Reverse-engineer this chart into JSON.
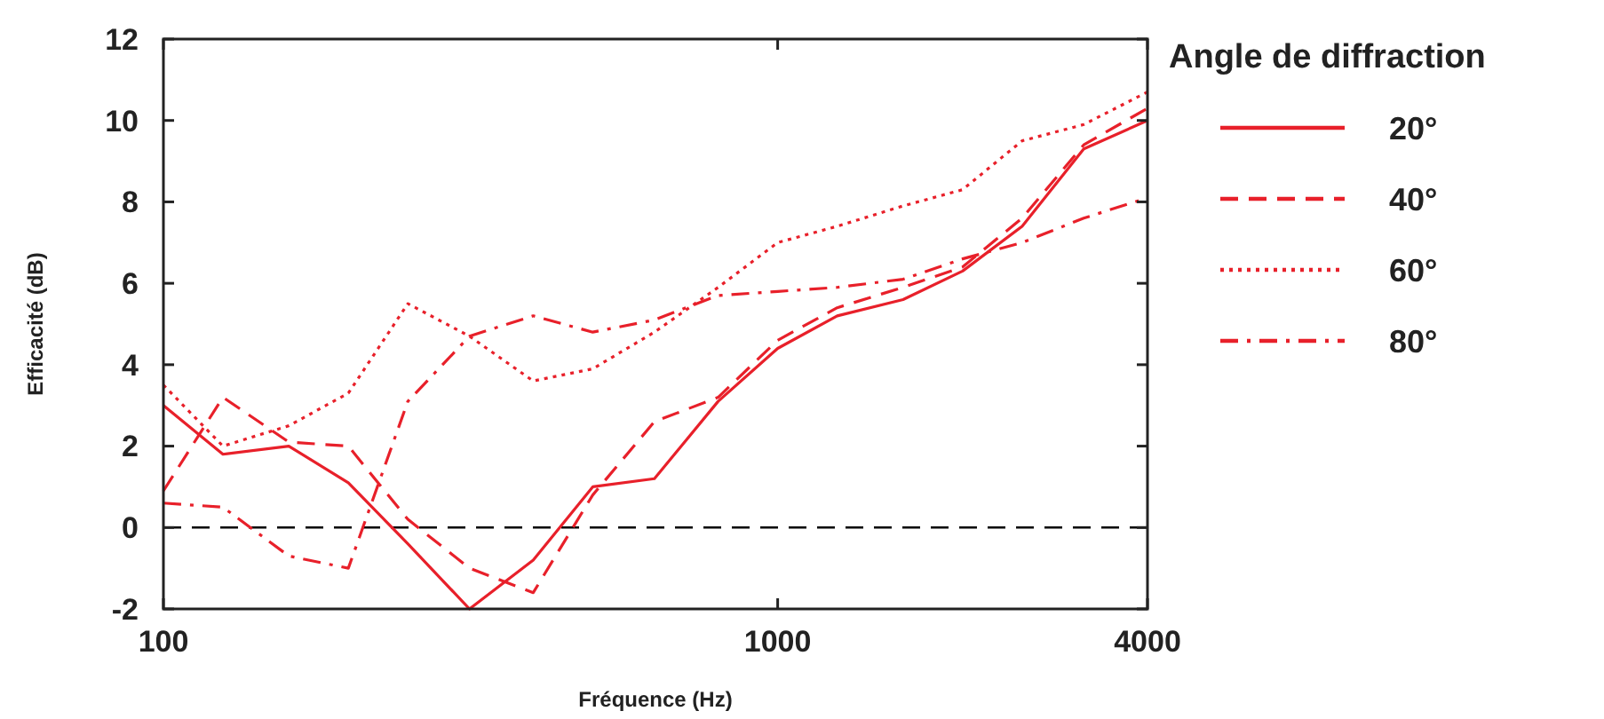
{
  "chart_data": {
    "type": "line",
    "xlabel": "Fréquence (Hz)",
    "ylabel": "Efficacité (dB)",
    "legend_title": "Angle de diffraction",
    "legend": "right",
    "log": "x",
    "grid": false,
    "x": [
      100,
      125,
      160,
      200,
      250,
      315,
      400,
      500,
      630,
      800,
      1000,
      1250,
      1600,
      2000,
      2500,
      3150,
      4000
    ],
    "xlim": [
      100,
      4000
    ],
    "xticks": [
      100,
      1000,
      4000
    ],
    "ylim": [
      -2,
      12
    ],
    "yticks": [
      -2,
      0,
      2,
      4,
      6,
      8,
      10,
      12
    ],
    "ref_lines": [
      {
        "axis": "y",
        "value": 0,
        "color": "#000000",
        "line_style": "dashed"
      }
    ],
    "series": [
      {
        "name": "20°",
        "color": "#e8202a",
        "line_style": "solid",
        "values": [
          3,
          1.8,
          2,
          1.1,
          -0.4,
          -2,
          -0.8,
          1,
          1.2,
          3.1,
          4.4,
          5.2,
          5.6,
          6.3,
          7.4,
          9.3,
          10
        ]
      },
      {
        "name": "40°",
        "color": "#e8202a",
        "line_style": "dashed",
        "values": [
          0.9,
          3.2,
          2.1,
          2,
          0.2,
          -1,
          -1.6,
          0.8,
          2.6,
          3.2,
          4.6,
          5.4,
          5.9,
          6.4,
          7.6,
          9.4,
          10.3
        ]
      },
      {
        "name": "60°",
        "color": "#e8202a",
        "line_style": "dotted",
        "values": [
          3.5,
          2,
          2.5,
          3.3,
          5.5,
          4.7,
          3.6,
          3.9,
          4.8,
          5.9,
          7,
          7.4,
          7.9,
          8.3,
          9.5,
          9.9,
          10.7
        ]
      },
      {
        "name": "80°",
        "color": "#e8202a",
        "line_style": "dashdot",
        "values": [
          0.6,
          0.5,
          -0.7,
          -1,
          3.1,
          4.7,
          5.2,
          4.8,
          5.1,
          5.7,
          5.8,
          5.9,
          6.1,
          6.6,
          7,
          7.6,
          8.1
        ]
      }
    ]
  }
}
